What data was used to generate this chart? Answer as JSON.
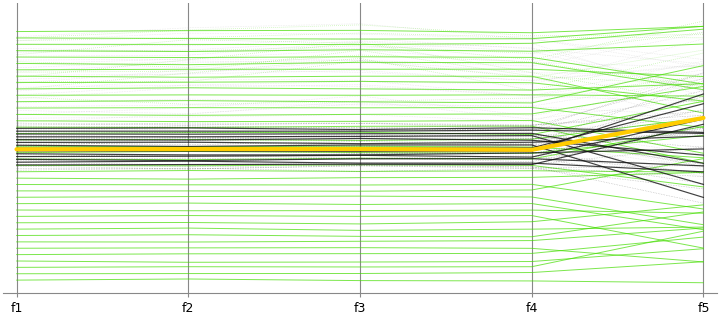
{
  "axes": [
    "f1",
    "f2",
    "f3",
    "f4",
    "f5"
  ],
  "background_color": "#ffffff",
  "axis_color": "#888888",
  "green_color": "#44dd00",
  "black_color": "#111111",
  "gray_color": "#999999",
  "yellow_color": "#ffcc00",
  "figsize": [
    7.2,
    3.18
  ],
  "dpi": 100
}
